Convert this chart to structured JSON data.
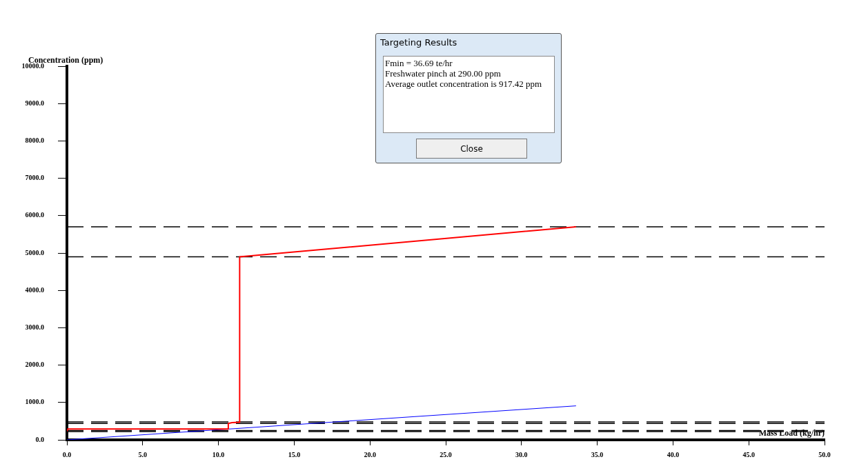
{
  "chart_data": {
    "type": "line",
    "xlabel": "Mass Load (kg/hr)",
    "ylabel": "Concentration (ppm)",
    "annotations": [
      "Targeting Results",
      "Fmin = 36.69 te/hr",
      "Freshwater pinch at 290.00 ppm",
      "Average outlet concentration is 917.42 ppm",
      "Close"
    ],
    "xlim": [
      0,
      50
    ],
    "ylim": [
      0,
      10000
    ],
    "xticks": [
      {
        "value": 0,
        "label": "0.0"
      },
      {
        "value": 5,
        "label": "5.0"
      },
      {
        "value": 10,
        "label": "10.0"
      },
      {
        "value": 15,
        "label": "15.0"
      },
      {
        "value": 20,
        "label": "20.0"
      },
      {
        "value": 25,
        "label": "25.0"
      },
      {
        "value": 30,
        "label": "30.0"
      },
      {
        "value": 35,
        "label": "35.0"
      },
      {
        "value": 40,
        "label": "40.0"
      },
      {
        "value": 45,
        "label": "45.0"
      },
      {
        "value": 50,
        "label": "50.0"
      }
    ],
    "yticks": [
      {
        "value": 0,
        "label": "0.0"
      },
      {
        "value": 1000,
        "label": "1000.0"
      },
      {
        "value": 2000,
        "label": "2000.0"
      },
      {
        "value": 3000,
        "label": "3000.0"
      },
      {
        "value": 4000,
        "label": "4000.0"
      },
      {
        "value": 5000,
        "label": "5000.0"
      },
      {
        "value": 6000,
        "label": "6000.0"
      },
      {
        "value": 7000,
        "label": "7000.0"
      },
      {
        "value": 8000,
        "label": "8000.0"
      },
      {
        "value": 9000,
        "label": "9000.0"
      },
      {
        "value": 10000,
        "label": "10000.0"
      }
    ],
    "marker": "none",
    "line_style": "solid",
    "legend": false,
    "series": [
      {
        "color": "#ff0000",
        "x": [
          0,
          0.05,
          10.65,
          10.65,
          10.9,
          11.4,
          11.4,
          33.6
        ],
        "values": [
          230,
          290,
          290,
          440,
          460,
          470,
          4900,
          5700
        ]
      },
      {
        "color": "#0000ff",
        "x": [
          0,
          33.6
        ],
        "values": [
          0,
          910
        ]
      }
    ],
    "ref_lines": [
      {
        "axis": "y",
        "value": 5700,
        "line_style": "dashed",
        "color": "#000000"
      },
      {
        "axis": "y",
        "value": 4900,
        "line_style": "dashed",
        "color": "#000000"
      },
      {
        "axis": "y",
        "value": 480,
        "line_style": "dashed",
        "color": "#000000"
      },
      {
        "axis": "y",
        "value": 440,
        "line_style": "dashed",
        "color": "#000000"
      },
      {
        "axis": "y",
        "value": 250,
        "line_style": "dashed",
        "color": "#000000"
      },
      {
        "axis": "y",
        "value": 220,
        "line_style": "dashed",
        "color": "#000000"
      }
    ]
  }
}
